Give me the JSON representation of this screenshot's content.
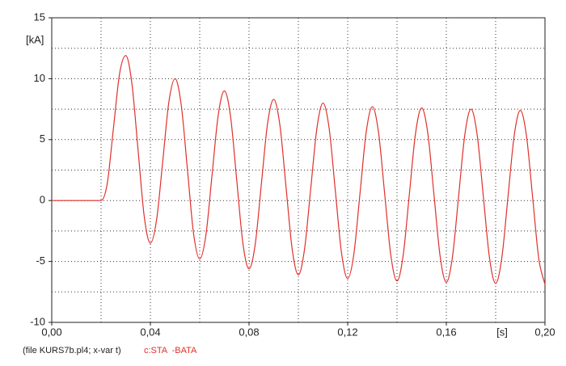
{
  "chart_data": {
    "type": "line",
    "ylabel": "[kA]",
    "xlabel": "[s]",
    "caption": "(file KURS7b.pl4; x-var t)",
    "xlim": [
      0,
      0.2
    ],
    "ylim": [
      -10,
      15
    ],
    "xticks": [
      {
        "value": 0,
        "label": "0,00"
      },
      {
        "value": 0.04,
        "label": "0,04"
      },
      {
        "value": 0.08,
        "label": "0,08"
      },
      {
        "value": 0.12,
        "label": "0,12"
      },
      {
        "value": 0.16,
        "label": "0,16"
      },
      {
        "value": 0.2,
        "label": "0,20"
      }
    ],
    "yticks": [
      -10,
      -5,
      0,
      5,
      10,
      15
    ],
    "grid": true,
    "x": [
      0,
      0.02,
      0.0225,
      0.025,
      0.0275,
      0.03,
      0.0325,
      0.035,
      0.0375,
      0.04,
      0.0425,
      0.045,
      0.0475,
      0.05,
      0.0525,
      0.055,
      0.0575,
      0.06,
      0.0625,
      0.065,
      0.0675,
      0.07,
      0.0725,
      0.075,
      0.0775,
      0.08,
      0.0825,
      0.085,
      0.0875,
      0.09,
      0.0925,
      0.095,
      0.0975,
      0.1,
      0.1025,
      0.105,
      0.1075,
      0.11,
      0.1125,
      0.115,
      0.1175,
      0.12,
      0.1225,
      0.125,
      0.1275,
      0.13,
      0.1325,
      0.135,
      0.1375,
      0.14,
      0.1425,
      0.145,
      0.1475,
      0.15,
      0.1525,
      0.155,
      0.1575,
      0.16,
      0.1625,
      0.165,
      0.1675,
      0.17,
      0.1725,
      0.175,
      0.1775,
      0.18,
      0.1825,
      0.185,
      0.1875,
      0.19,
      0.1925,
      0.195,
      0.1975,
      0.2
    ],
    "series": [
      {
        "name": "c:STA  -BATA",
        "color": "#e0302a",
        "values": [
          0,
          0,
          1.4,
          5.9,
          10.4,
          11.9,
          9.6,
          4.15,
          -1.3,
          -3.5,
          -1.6,
          3.2,
          8.1,
          10.0,
          7.85,
          2.6,
          -2.7,
          -4.8,
          -2.85,
          2.1,
          7.0,
          9.0,
          6.9,
          1.7,
          -3.5,
          -5.6,
          -3.6,
          1.35,
          6.3,
          8.3,
          6.2,
          1.1,
          -4.0,
          -6.1,
          -4.0,
          0.95,
          5.9,
          8.0,
          5.9,
          0.78,
          -4.3,
          -6.4,
          -4.4,
          0.6,
          5.6,
          7.7,
          5.6,
          0.55,
          -4.5,
          -6.6,
          -4.5,
          0.5,
          5.5,
          7.6,
          5.5,
          0.45,
          -4.6,
          -6.7,
          -4.6,
          0.4,
          5.4,
          7.5,
          5.4,
          0.35,
          -4.7,
          -6.8,
          -4.7,
          0.3,
          5.3,
          7.4,
          5.3,
          0.25,
          -4.8,
          -6.9
        ]
      }
    ]
  }
}
